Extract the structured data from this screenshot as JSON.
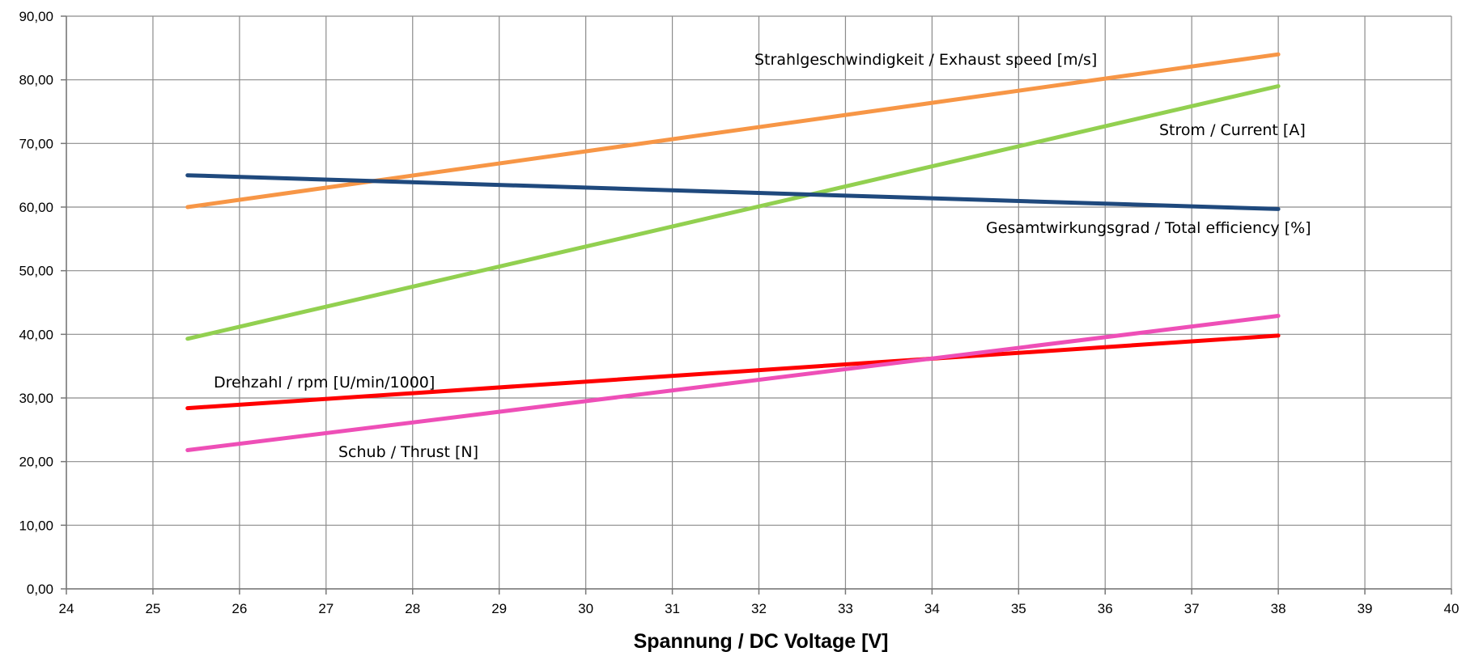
{
  "chart_data": {
    "type": "line",
    "title": "",
    "xlabel": "Spannung / DC Voltage [V]",
    "ylabel": "",
    "xlim": [
      24,
      40
    ],
    "ylim": [
      0,
      90
    ],
    "x_ticks": [
      24,
      25,
      26,
      27,
      28,
      29,
      30,
      31,
      32,
      33,
      34,
      35,
      36,
      37,
      38,
      39,
      40
    ],
    "x_tick_labels": [
      "24",
      "25",
      "26",
      "27",
      "28",
      "29",
      "30",
      "31",
      "32",
      "33",
      "34",
      "35",
      "36",
      "37",
      "38",
      "39",
      "40"
    ],
    "y_ticks": [
      0,
      10,
      20,
      30,
      40,
      50,
      60,
      70,
      80,
      90
    ],
    "y_tick_labels": [
      "0,00",
      "10,00",
      "20,00",
      "30,00",
      "40,00",
      "50,00",
      "60,00",
      "70,00",
      "80,00",
      "90,00"
    ],
    "grid": true,
    "legend": "none",
    "series": [
      {
        "name": "Strahlgeschwindigkeit / Exhaust speed [m/s]",
        "color": "#f79646",
        "x": [
          25.4,
          38
        ],
        "y": [
          60,
          84
        ]
      },
      {
        "name": "Strom / Current [A]",
        "color": "#92d050",
        "x": [
          25.4,
          38
        ],
        "y": [
          39.3,
          79
        ]
      },
      {
        "name": "Gesamtwirkungsgrad / Total efficiency [%]",
        "color": "#1f497d",
        "x": [
          25.4,
          38
        ],
        "y": [
          65,
          59.7
        ]
      },
      {
        "name": "Drehzahl / rpm [U/min/1000]",
        "color": "#ff0000",
        "x": [
          25.4,
          38
        ],
        "y": [
          28.4,
          39.8
        ]
      },
      {
        "name": "Schub / Thrust [N]",
        "color": "#ee4fb7",
        "x": [
          25.4,
          38
        ],
        "y": [
          21.8,
          42.9
        ]
      }
    ]
  }
}
